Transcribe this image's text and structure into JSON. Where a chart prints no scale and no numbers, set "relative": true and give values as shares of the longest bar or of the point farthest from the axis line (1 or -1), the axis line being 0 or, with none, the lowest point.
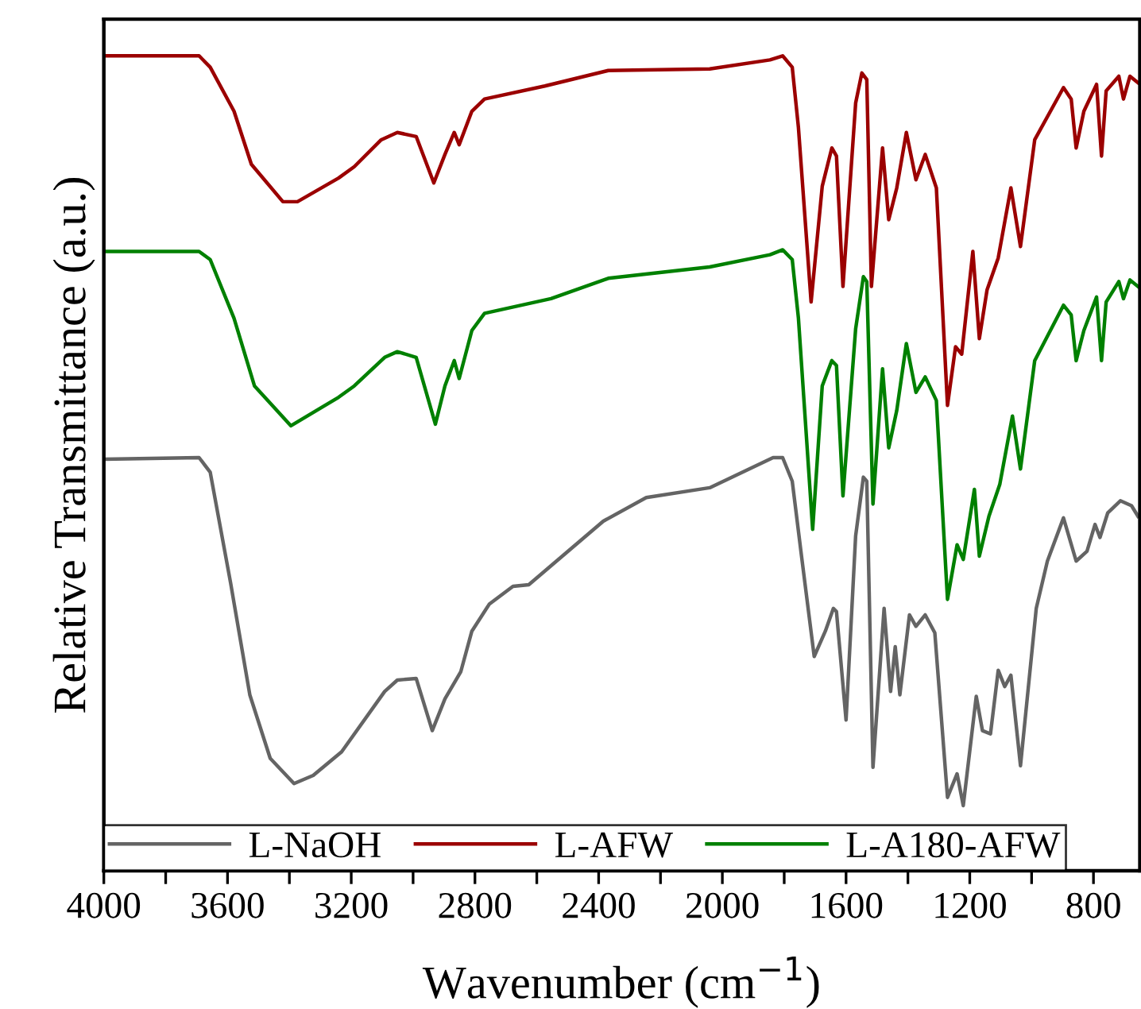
{
  "chart_data": {
    "type": "line",
    "xlabel": "Wavenumber (cm$^{−1}$)",
    "ylabel": "Relative Transmittance (a.u.)",
    "relative": true,
    "xlim": [
      4000,
      650
    ],
    "xticks": [
      4000,
      {
        "value": 3800,
        "label": null
      },
      3600,
      {
        "value": 3400,
        "label": null
      },
      3200,
      {
        "value": 3000,
        "label": null
      },
      2800,
      {
        "value": 2600,
        "label": null
      },
      2400,
      {
        "value": 2200,
        "label": null
      },
      2000,
      {
        "value": 1800,
        "label": null
      },
      1600,
      {
        "value": 1400,
        "label": null
      },
      1200,
      {
        "value": 1000,
        "label": null
      },
      800
    ],
    "tick_labels": "x",
    "legend": "bottom left",
    "grid": false,
    "marker": "none",
    "line_style": "solid",
    "series": [
      {
        "name": "L-NaOH",
        "color": "#646464",
        "x": [
          4000,
          3692,
          3656,
          3590,
          3528,
          3462,
          3385,
          3323,
          3231,
          3092,
          3051,
          2990,
          2938,
          2897,
          2846,
          2810,
          2754,
          2677,
          2626,
          2385,
          2246,
          2041,
          1836,
          1805,
          1774,
          1744,
          1703,
          1667,
          1641,
          1631,
          1600,
          1569,
          1544,
          1533,
          1513,
          1477,
          1456,
          1441,
          1426,
          1395,
          1374,
          1344,
          1313,
          1272,
          1241,
          1221,
          1179,
          1159,
          1133,
          1108,
          1087,
          1067,
          1036,
          985,
          949,
          897,
          856,
          821,
          795,
          779,
          754,
          713,
          677,
          656
        ],
        "values": [
          0.505,
          0.507,
          0.489,
          0.353,
          0.216,
          0.138,
          0.107,
          0.117,
          0.146,
          0.22,
          0.234,
          0.236,
          0.172,
          0.211,
          0.244,
          0.294,
          0.327,
          0.349,
          0.351,
          0.429,
          0.458,
          0.47,
          0.507,
          0.507,
          0.478,
          0.386,
          0.263,
          0.294,
          0.322,
          0.318,
          0.185,
          0.411,
          0.483,
          0.478,
          0.127,
          0.322,
          0.22,
          0.275,
          0.216,
          0.314,
          0.3,
          0.314,
          0.292,
          0.09,
          0.119,
          0.08,
          0.214,
          0.172,
          0.168,
          0.246,
          0.226,
          0.24,
          0.129,
          0.322,
          0.38,
          0.433,
          0.38,
          0.392,
          0.425,
          0.409,
          0.439,
          0.454,
          0.448,
          0.435
        ]
      },
      {
        "name": "L-AFW",
        "color": "#9b0000",
        "x": [
          4000,
          3692,
          3656,
          3579,
          3523,
          3421,
          3374,
          3241,
          3190,
          3103,
          3051,
          2990,
          2933,
          2897,
          2867,
          2851,
          2810,
          2769,
          2574,
          2369,
          2041,
          1846,
          1805,
          1774,
          1754,
          1713,
          1677,
          1646,
          1631,
          1610,
          1569,
          1549,
          1533,
          1518,
          1482,
          1462,
          1436,
          1405,
          1374,
          1344,
          1308,
          1272,
          1246,
          1226,
          1190,
          1169,
          1144,
          1108,
          1067,
          1036,
          990,
          897,
          872,
          856,
          831,
          790,
          774,
          759,
          718,
          703,
          682,
          656
        ],
        "values": [
          1.0,
          1.0,
          0.986,
          0.932,
          0.867,
          0.821,
          0.821,
          0.85,
          0.864,
          0.897,
          0.906,
          0.901,
          0.844,
          0.879,
          0.906,
          0.891,
          0.932,
          0.947,
          0.963,
          0.982,
          0.984,
          0.995,
          1.0,
          0.986,
          0.912,
          0.698,
          0.84,
          0.887,
          0.877,
          0.717,
          0.942,
          0.979,
          0.971,
          0.717,
          0.887,
          0.799,
          0.838,
          0.906,
          0.848,
          0.879,
          0.838,
          0.571,
          0.643,
          0.634,
          0.76,
          0.653,
          0.713,
          0.752,
          0.838,
          0.766,
          0.897,
          0.961,
          0.947,
          0.887,
          0.932,
          0.965,
          0.877,
          0.957,
          0.975,
          0.947,
          0.975,
          0.967
        ]
      },
      {
        "name": "L-A180-AFW",
        "color": "#008000",
        "x": [
          4000,
          3692,
          3656,
          3579,
          3513,
          3395,
          3241,
          3190,
          3092,
          3051,
          2990,
          2928,
          2897,
          2867,
          2851,
          2810,
          2769,
          2554,
          2369,
          2041,
          1846,
          1805,
          1774,
          1754,
          1708,
          1677,
          1646,
          1631,
          1610,
          1569,
          1544,
          1533,
          1513,
          1482,
          1462,
          1436,
          1405,
          1374,
          1344,
          1308,
          1272,
          1241,
          1221,
          1185,
          1169,
          1138,
          1103,
          1062,
          1036,
          990,
          897,
          872,
          856,
          831,
          790,
          774,
          759,
          718,
          703,
          682,
          656
        ],
        "values": [
          0.76,
          0.76,
          0.75,
          0.678,
          0.595,
          0.546,
          0.581,
          0.595,
          0.63,
          0.637,
          0.63,
          0.548,
          0.595,
          0.626,
          0.604,
          0.663,
          0.684,
          0.702,
          0.727,
          0.741,
          0.756,
          0.762,
          0.75,
          0.678,
          0.419,
          0.595,
          0.626,
          0.62,
          0.46,
          0.665,
          0.729,
          0.723,
          0.45,
          0.616,
          0.519,
          0.565,
          0.647,
          0.587,
          0.606,
          0.577,
          0.333,
          0.4,
          0.382,
          0.468,
          0.386,
          0.435,
          0.474,
          0.558,
          0.493,
          0.626,
          0.694,
          0.682,
          0.626,
          0.663,
          0.704,
          0.626,
          0.698,
          0.723,
          0.702,
          0.725,
          0.717
        ]
      }
    ]
  }
}
